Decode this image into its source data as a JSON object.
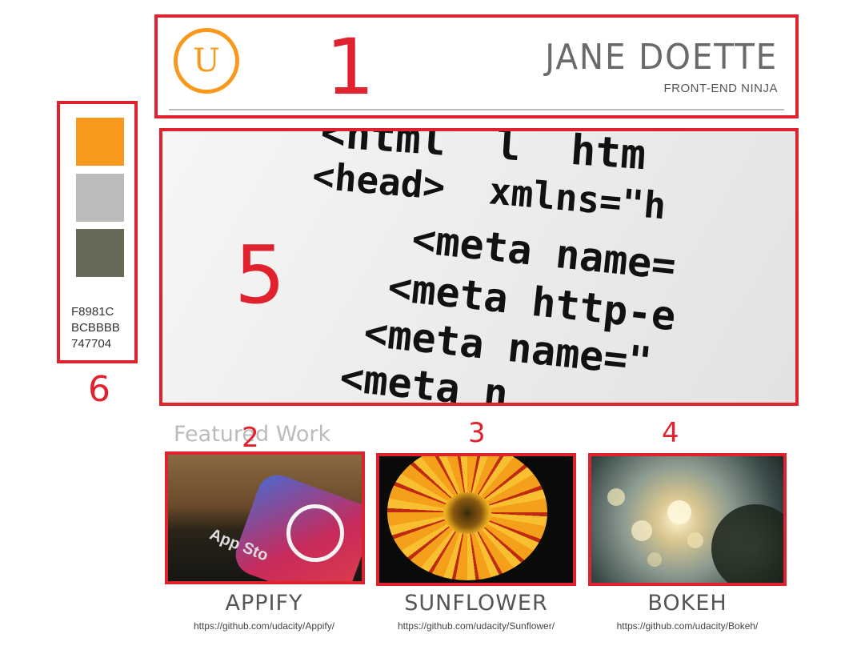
{
  "header": {
    "logo_letter": "U",
    "name": "JANE DOETTE",
    "tagline": "FRONT-END NINJA"
  },
  "annotations": {
    "header": "1",
    "card1": "2",
    "card2": "3",
    "card3": "4",
    "hero": "5",
    "palette": "6"
  },
  "hero": {
    "code_lines": [
      "<html  l  htm",
      "<head>  xmlns=\"h",
      "<meta name=",
      "<meta http-e",
      "<meta name=\"",
      "<meta n"
    ]
  },
  "palette": {
    "colors": [
      "#F8981C",
      "#BCBBBB",
      "#747704"
    ],
    "hex_labels": [
      "F8981C",
      "BCBBBB",
      "747704"
    ]
  },
  "featured": {
    "title": "Featured Work",
    "projects": [
      {
        "title": "APPIFY",
        "link": "https://github.com/udacity/Appify/"
      },
      {
        "title": "SUNFLOWER",
        "link": "https://github.com/udacity/Sunflower/"
      },
      {
        "title": "BOKEH",
        "link": "https://github.com/udacity/Bokeh/"
      }
    ]
  }
}
